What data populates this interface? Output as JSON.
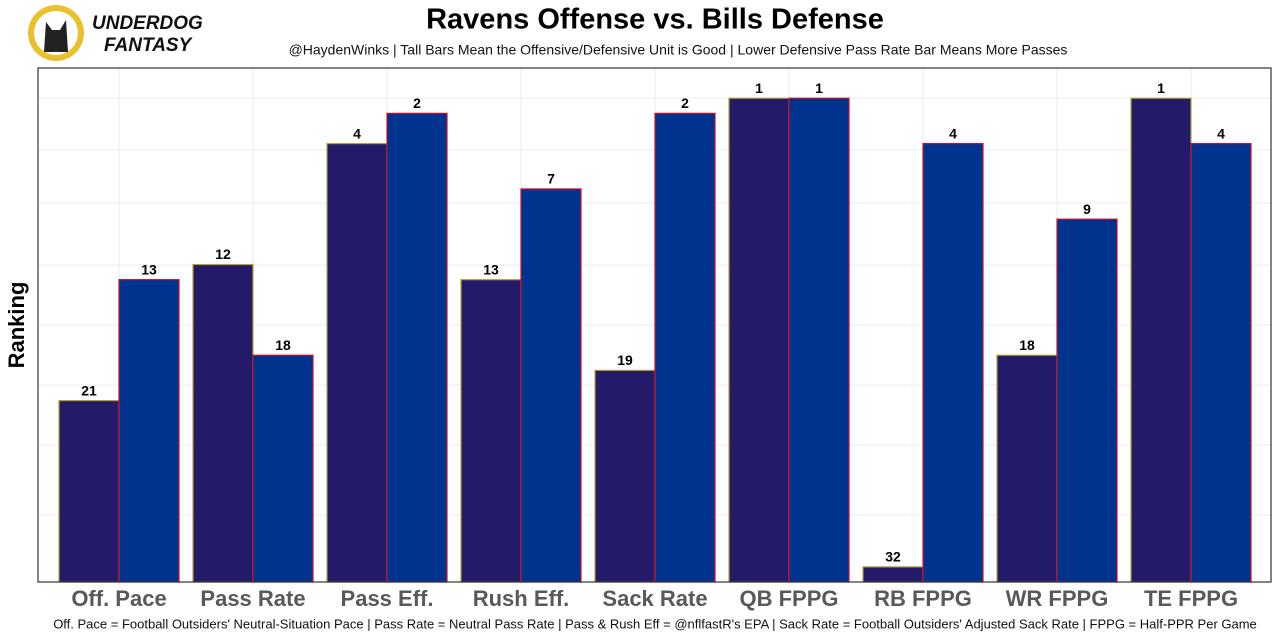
{
  "logo": {
    "line1": "UNDERDOG",
    "line2": "FANTASY"
  },
  "chart_data": {
    "type": "bar",
    "title": "Ravens Offense vs. Bills Defense",
    "subtitle": "@HaydenWinks | Tall Bars Mean the Offensive/Defensive Unit is Good | Lower Defensive Pass Rate Bar Means More Passes",
    "caption": "Off. Pace = Football Outsiders' Neutral-Situation Pace | Pass Rate = Neutral Pass Rate | Pass & Rush Eff = @nflfastR's EPA | Sack Rate = Football Outsiders' Adjusted Sack Rate | FPPG = Half-PPR Per Game",
    "y_label": "Ranking",
    "categories": [
      "Off. Pace",
      "Pass Rate",
      "Pass Eff.",
      "Rush Eff.",
      "Sack Rate",
      "QB FPPG",
      "RB FPPG",
      "WR FPPG",
      "TE FPPG"
    ],
    "series": [
      {
        "color": "#241a6a",
        "border": "#b8a030",
        "values": [
          21,
          12,
          4,
          13,
          19,
          1,
          32,
          18,
          1
        ]
      },
      {
        "color": "#00338d",
        "border": "#c8102e",
        "values": [
          13,
          18,
          2,
          7,
          2,
          1,
          4,
          9,
          4
        ]
      }
    ],
    "ylim": [
      33,
      -1
    ]
  }
}
